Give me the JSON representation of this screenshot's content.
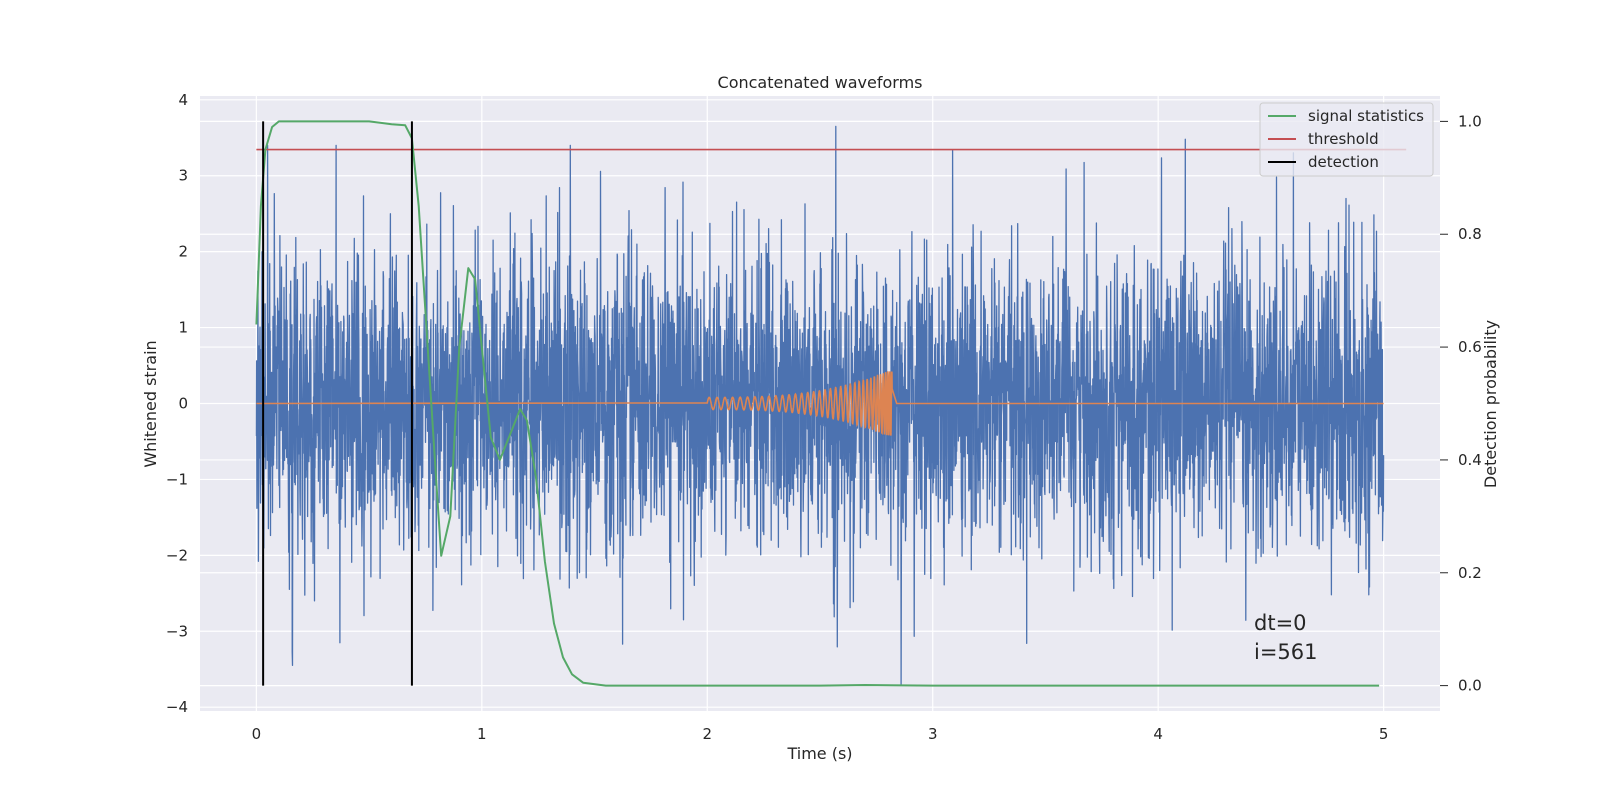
{
  "chart_data": {
    "type": "line",
    "title": "Concatenated waveforms",
    "xlabel": "Time (s)",
    "ylabel": "Whitened strain",
    "y2label": "Detection probability",
    "xlim": [
      -0.25,
      5.25
    ],
    "ylim": [
      -4.05,
      4.05
    ],
    "y2lim": [
      -0.045,
      1.045
    ],
    "x_ticks": [
      0,
      1,
      2,
      3,
      4,
      5
    ],
    "y_ticks": [
      -4,
      -3,
      -2,
      -1,
      0,
      1,
      2,
      3,
      4
    ],
    "y2_ticks": [
      0.0,
      0.2,
      0.4,
      0.6,
      0.8,
      1.0
    ],
    "x_tick_labels": [
      "0",
      "1",
      "2",
      "3",
      "4",
      "5"
    ],
    "y_tick_labels": [
      "−4",
      "−3",
      "−2",
      "−1",
      "0",
      "1",
      "2",
      "3",
      "4"
    ],
    "y2_tick_labels": [
      "0.0",
      "0.2",
      "0.4",
      "0.6",
      "0.8",
      "1.0"
    ],
    "grid": true,
    "legend_position": "top-right",
    "colors": {
      "plot_background": "#eaeaf2",
      "grid": "#ffffff",
      "strain": "#4c72b0",
      "injected_signal": "#dd8452",
      "signal_statistics": "#55a868",
      "threshold": "#c44e52",
      "detection": "#000000"
    },
    "series": [
      {
        "name": "",
        "axis": "left",
        "description_type": "noise",
        "x_range": [
          0.0,
          5.0
        ],
        "typical_amplitude": 1.0,
        "peak_max": 3.65,
        "peak_min": -3.7
      },
      {
        "name": "",
        "axis": "left",
        "description_type": "chirp",
        "x_range": [
          2.0,
          2.82
        ],
        "amplitude_start": 0.08,
        "amplitude_end": 0.45
      },
      {
        "name": "signal statistics",
        "axis": "right",
        "x": [
          0.0,
          0.02,
          0.04,
          0.07,
          0.1,
          0.15,
          0.3,
          0.5,
          0.6,
          0.66,
          0.69,
          0.72,
          0.76,
          0.8,
          0.82,
          0.86,
          0.9,
          0.94,
          0.97,
          1.0,
          1.04,
          1.08,
          1.12,
          1.17,
          1.2,
          1.24,
          1.28,
          1.32,
          1.36,
          1.4,
          1.45,
          1.55,
          1.7,
          2.0,
          2.5,
          2.7,
          3.0,
          3.5,
          4.0,
          4.5,
          4.98
        ],
        "values": [
          0.64,
          0.85,
          0.95,
          0.99,
          1.0,
          1.0,
          1.0,
          1.0,
          0.995,
          0.993,
          0.97,
          0.85,
          0.6,
          0.35,
          0.23,
          0.3,
          0.6,
          0.74,
          0.72,
          0.6,
          0.44,
          0.4,
          0.44,
          0.49,
          0.47,
          0.37,
          0.22,
          0.11,
          0.05,
          0.02,
          0.005,
          0.0,
          0.0,
          0.0,
          0.0,
          0.001,
          0.0,
          0.0,
          0.0,
          0.0,
          0.0
        ]
      },
      {
        "name": "threshold",
        "axis": "right",
        "x": [
          0.0,
          5.1
        ],
        "values": [
          0.95,
          0.95
        ]
      },
      {
        "name": "detection",
        "axis": "right",
        "type": "vlines",
        "x": [
          0.03,
          0.69
        ],
        "range": [
          0.0,
          1.0
        ]
      }
    ],
    "annotations": [
      "dt=0",
      "i=561"
    ]
  }
}
